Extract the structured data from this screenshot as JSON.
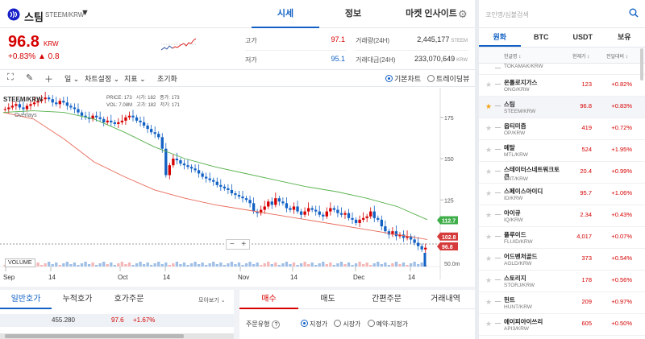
{
  "header": {
    "coin_name": "스팀",
    "coin_pair": "STEEM/KRW",
    "tabs": [
      "시세",
      "정보",
      "마켓 인사이트"
    ]
  },
  "ticker": {
    "price": "96.8",
    "price_unit": "KRW",
    "change_pct": "+0.83%",
    "change_abs": "▲ 0.8",
    "high_label": "고가",
    "high_value": "97.1",
    "low_label": "저가",
    "low_value": "95.1",
    "volume_label": "거래량(24H)",
    "volume_value": "2,445,177",
    "volume_unit": "STEEM",
    "amount_label": "거래대금(24H)",
    "amount_value": "233,070,649",
    "amount_unit": "KRW"
  },
  "toolbar": {
    "interval": "일",
    "chart_settings": "차트설정",
    "indicators": "지표",
    "reset": "초기화",
    "basic_chart": "기본차트",
    "trading_view": "트레이딩뷰"
  },
  "chart": {
    "pair_label": "STEEM/KRW",
    "overlays_label": "Overlays",
    "ohlc": {
      "price_label": "PRICE:",
      "price": "173",
      "open_label": "시가:",
      "open": "182",
      "close_label": "종가:",
      "close": "173",
      "vol_label": "VOL:",
      "vol": "7.08M",
      "high_label": "고가:",
      "high": "182",
      "low_label": "저가:",
      "low": "171"
    },
    "volume_label": "VOLUME",
    "zoom_out": "−",
    "zoom_in": "+",
    "price_badges": [
      "112.7",
      "102.8",
      "96.8"
    ],
    "colors": {
      "up": "#d60000",
      "down": "#1261c4",
      "ma_short": "#e86a5a",
      "ma_long": "#57b14b",
      "badge_green": "#3fae49",
      "badge_red": "#d63b3b"
    }
  },
  "chart_data": {
    "type": "candlestick",
    "title": "STEEM/KRW",
    "y_ticks": [
      "175",
      "150",
      "125"
    ],
    "x_ticks": [
      "Sep",
      "14",
      "Oct",
      "14",
      "Nov",
      "14",
      "Dec",
      "14"
    ],
    "volume_tick": "50.0m",
    "series": [
      {
        "name": "price",
        "values": [
          180,
          181,
          182,
          183,
          181,
          180,
          182,
          183,
          184,
          185,
          186,
          187,
          186,
          184,
          183,
          185,
          184,
          182,
          181,
          180,
          178,
          176,
          175,
          174,
          176,
          175,
          174,
          172,
          173,
          172,
          171,
          172,
          173,
          175,
          176,
          175,
          173,
          172,
          170,
          168,
          166,
          165,
          163,
          156,
          140,
          146,
          150,
          149,
          147,
          146,
          145,
          144,
          143,
          141,
          139,
          138,
          137,
          136,
          134,
          133,
          132,
          131,
          129,
          128,
          127,
          126,
          125,
          123,
          118,
          117,
          119,
          121,
          124,
          122,
          126,
          124,
          123,
          120,
          119,
          121,
          118,
          116,
          118,
          120,
          119,
          118,
          116,
          115,
          118,
          120,
          119,
          117,
          116,
          117,
          114,
          113,
          111,
          113,
          114,
          115,
          118,
          114,
          113,
          109,
          106,
          104,
          106,
          103,
          104,
          102,
          103,
          101,
          99,
          97,
          95,
          96
        ]
      },
      {
        "name": "MA short",
        "values": [
          178,
          174,
          162,
          148,
          139,
          131,
          126,
          122,
          119,
          116,
          113,
          110,
          107,
          104,
          101
        ]
      },
      {
        "name": "MA long",
        "values": [
          178,
          179,
          178,
          174,
          166,
          157,
          150,
          145,
          141,
          137,
          133,
          130,
          126,
          121,
          113
        ]
      }
    ],
    "ylim": [
      90,
      190
    ]
  },
  "orderbook": {
    "tabs": [
      "일반호가",
      "누적호가",
      "호가주문"
    ],
    "more_label": "모아보기",
    "row": {
      "qty": "455.280",
      "price": "97.6",
      "pct": "+1.67%"
    }
  },
  "order_panel": {
    "tabs": [
      "매수",
      "매도",
      "간편주문",
      "거래내역"
    ],
    "order_type_label": "주문유형",
    "help": "?",
    "options": [
      "지정가",
      "시장가",
      "예약-지정가"
    ],
    "selected_option": "지정가"
  },
  "market": {
    "search_placeholder": "코인명/심볼검색",
    "tabs": [
      "원화",
      "BTC",
      "USDT",
      "보유"
    ],
    "col_name": "한글명 ↕",
    "col_price": "현재가 ↕",
    "col_change": "전일대비 ↕",
    "rows": [
      {
        "name": "",
        "symbol": "TOKAMAK/KRW",
        "price": "",
        "pct": "",
        "starred": false
      },
      {
        "name": "온톨로지가스",
        "symbol": "ONG/KRW",
        "price": "123",
        "pct": "+0.82%",
        "starred": false
      },
      {
        "name": "스팀",
        "symbol": "STEEM/KRW",
        "price": "96.8",
        "pct": "+0.83%",
        "starred": true
      },
      {
        "name": "옵티미즘",
        "symbol": "OP/KRW",
        "price": "419",
        "pct": "+0.72%",
        "starred": false
      },
      {
        "name": "메탈",
        "symbol": "MTL/KRW",
        "price": "524",
        "pct": "+1.95%",
        "starred": false
      },
      {
        "name": "스테이터스네트워크토큰",
        "symbol": "SNT/KRW",
        "price": "20.4",
        "pct": "+0.99%",
        "starred": false
      },
      {
        "name": "스페이스아이디",
        "symbol": "ID/KRW",
        "price": "95.7",
        "pct": "+1.06%",
        "starred": false
      },
      {
        "name": "아이큐",
        "symbol": "IQ/KRW",
        "price": "2.34",
        "pct": "+0.43%",
        "starred": false
      },
      {
        "name": "플루이드",
        "symbol": "FLUID/KRW",
        "price": "4,017",
        "pct": "+0.07%",
        "starred": false
      },
      {
        "name": "어드벤처골드",
        "symbol": "AGLD/KRW",
        "price": "373",
        "pct": "+0.54%",
        "starred": false
      },
      {
        "name": "스토리지",
        "symbol": "STORJ/KRW",
        "price": "178",
        "pct": "+0.56%",
        "starred": false
      },
      {
        "name": "헌트",
        "symbol": "HUNT/KRW",
        "price": "209",
        "pct": "+0.97%",
        "starred": false
      },
      {
        "name": "에이피아이쓰리",
        "symbol": "API3/KRW",
        "price": "605",
        "pct": "+0.50%",
        "starred": false
      }
    ]
  }
}
